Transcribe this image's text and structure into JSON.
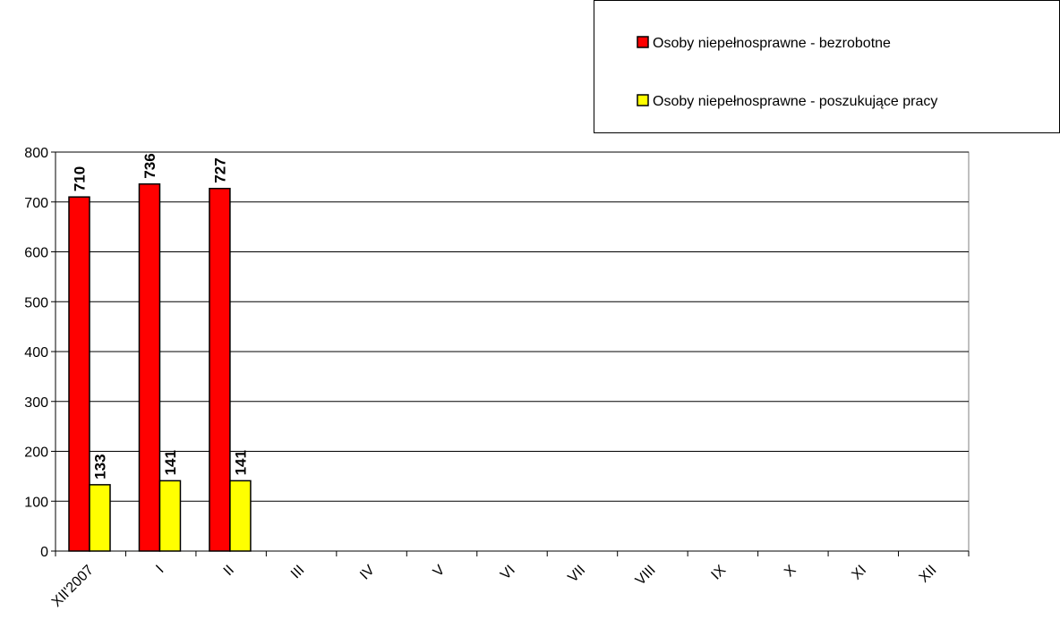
{
  "chart_data": {
    "type": "bar",
    "categories": [
      "XII'2007",
      "I",
      "II",
      "III",
      "IV",
      "V",
      "VI",
      "VII",
      "VIII",
      "IX",
      "X",
      "XI",
      "XII"
    ],
    "series": [
      {
        "name": "Osoby niepełnosprawne - bezrobotne",
        "color": "#ff0000",
        "values": [
          710,
          736,
          727,
          null,
          null,
          null,
          null,
          null,
          null,
          null,
          null,
          null,
          null
        ]
      },
      {
        "name": "Osoby niepełnosprawne - poszukujące pracy",
        "color": "#ffff00",
        "values": [
          133,
          141,
          141,
          null,
          null,
          null,
          null,
          null,
          null,
          null,
          null,
          null,
          null
        ]
      }
    ],
    "ylim": [
      0,
      800
    ],
    "yticks": [
      0,
      100,
      200,
      300,
      400,
      500,
      600,
      700,
      800
    ],
    "grid": true,
    "legend": "top-right"
  }
}
